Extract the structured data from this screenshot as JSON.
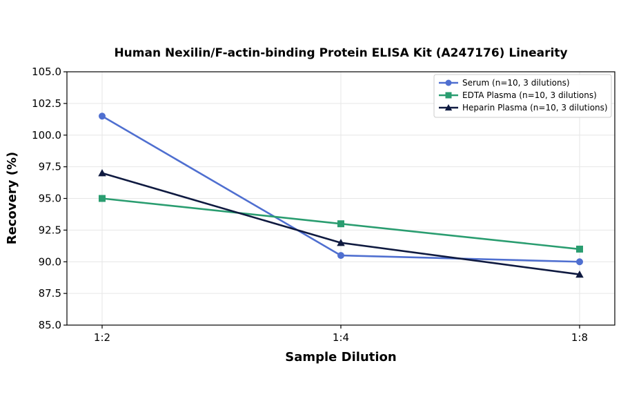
{
  "chart_data": {
    "type": "line",
    "title": "Human Nexilin/F-actin-binding Protein ELISA Kit (A247176) Linearity",
    "xlabel": "Sample Dilution",
    "ylabel": "Recovery (%)",
    "categories": [
      "1:2",
      "1:4",
      "1:8"
    ],
    "ylim": [
      85.0,
      105.0
    ],
    "yticks": [
      "85.0",
      "87.5",
      "90.0",
      "92.5",
      "95.0",
      "97.5",
      "100.0",
      "102.5",
      "105.0"
    ],
    "grid": true,
    "legend_position": "top-right",
    "series": [
      {
        "name": "Serum (n=10, 3 dilutions)",
        "values": [
          101.5,
          90.5,
          90.0
        ],
        "color": "#4f6fd0",
        "marker": "circle"
      },
      {
        "name": "EDTA Plasma (n=10, 3 dilutions)",
        "values": [
          95.0,
          93.0,
          91.0
        ],
        "color": "#2a9d70",
        "marker": "square"
      },
      {
        "name": "Heparin Plasma (n=10, 3 dilutions)",
        "values": [
          97.0,
          91.5,
          89.0
        ],
        "color": "#0f1a40",
        "marker": "triangle"
      }
    ]
  }
}
